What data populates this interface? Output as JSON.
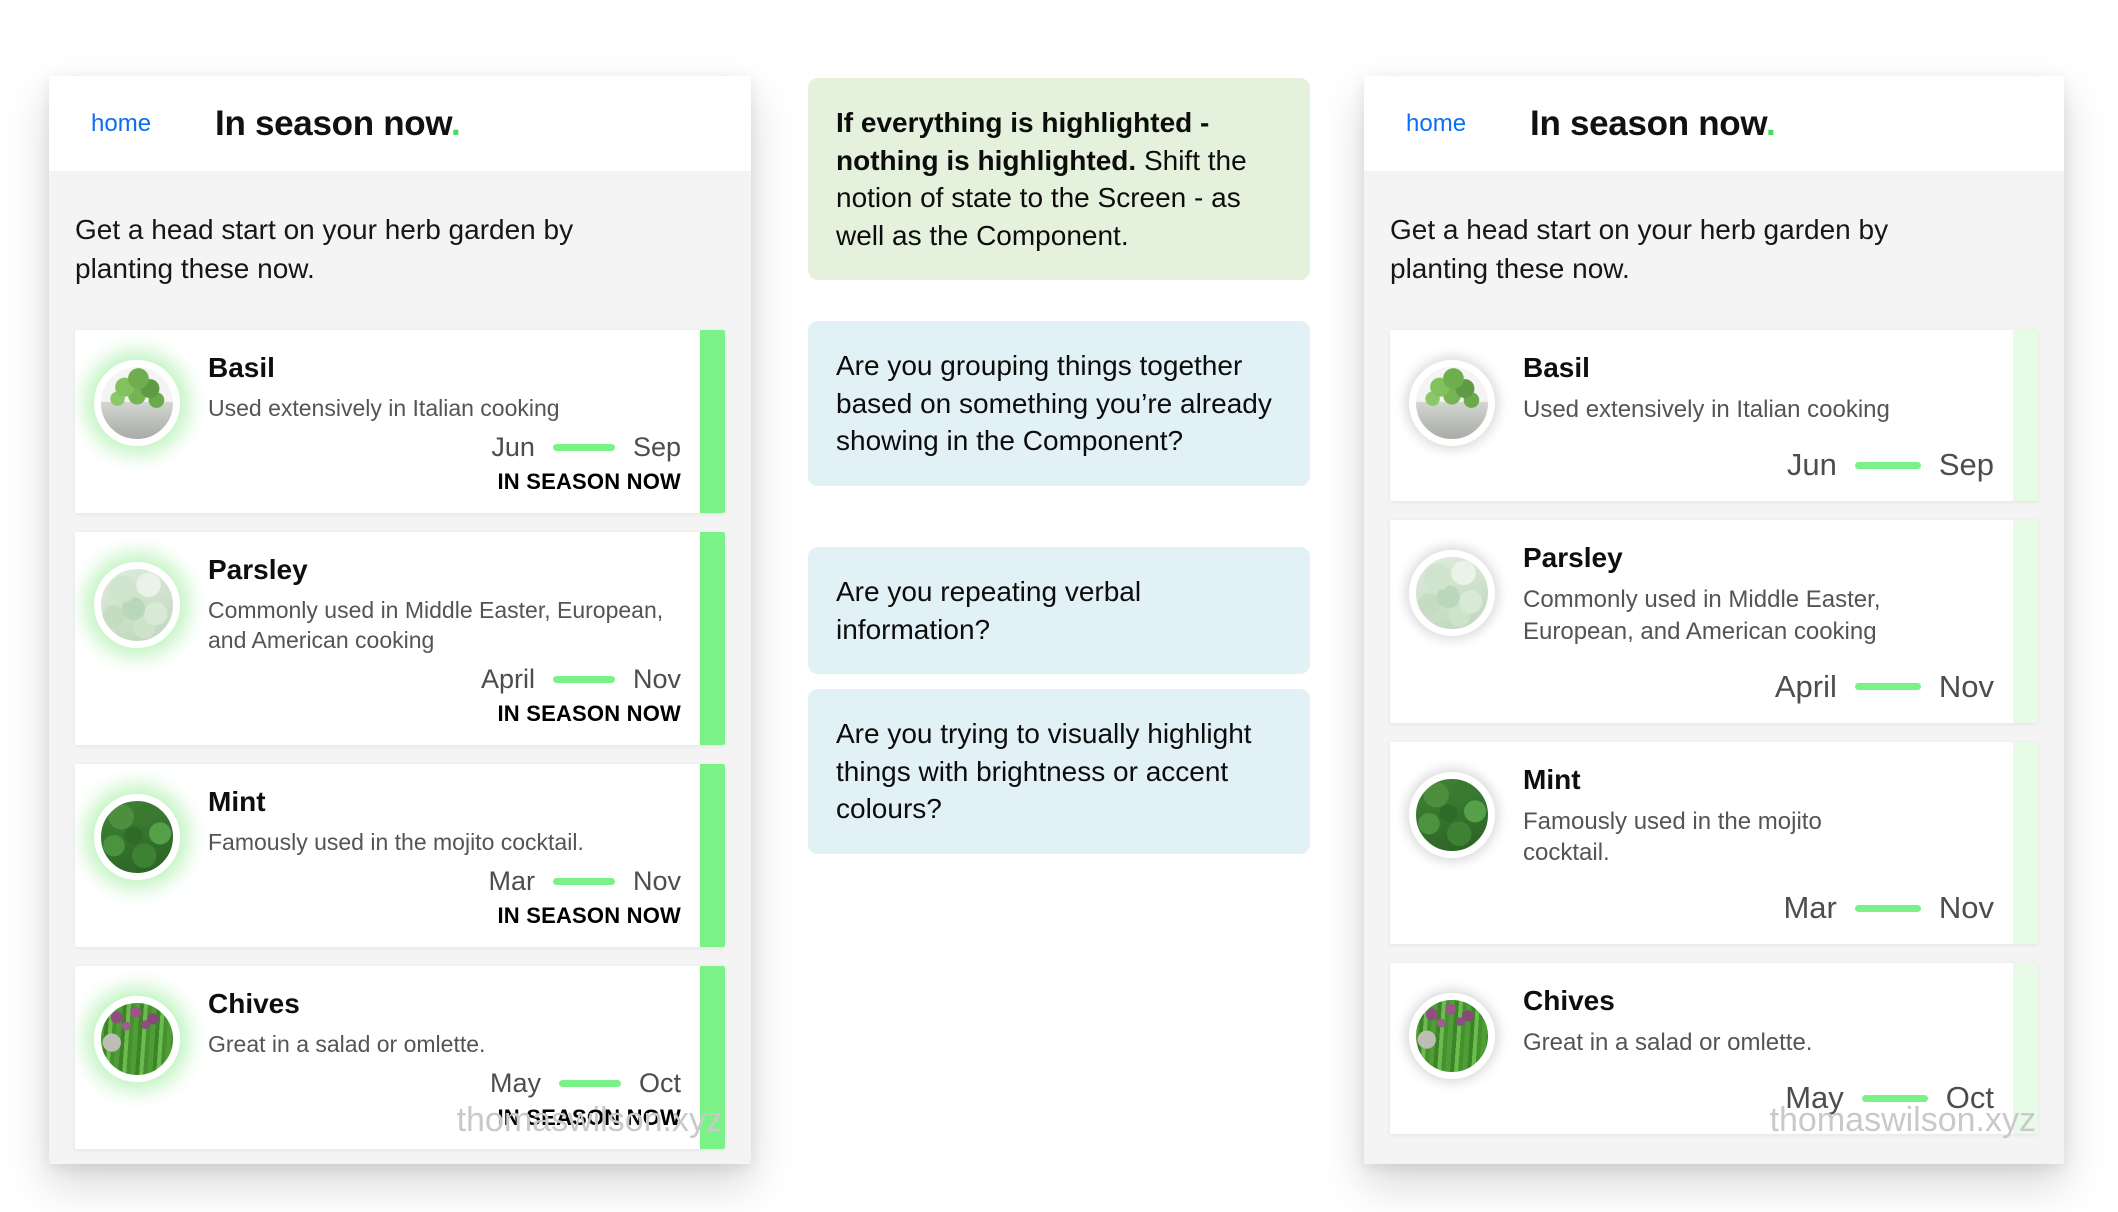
{
  "left_phone": {
    "nav": "home",
    "title": "In season now",
    "title_accent": ".",
    "intro": "Get a head start on your herb garden by planting these now.",
    "footer": "thomaswilson.xyz",
    "cards": [
      {
        "name": "Basil",
        "desc": "Used extensively in Italian cooking",
        "start": "Jun",
        "end": "Sep",
        "badge": "IN SEASON NOW",
        "photo": "basil"
      },
      {
        "name": "Parsley",
        "desc": "Commonly used in Middle Easter, European, and American cooking",
        "start": "April",
        "end": "Nov",
        "badge": "IN SEASON NOW",
        "photo": "parsley"
      },
      {
        "name": "Mint",
        "desc": "Famously used in the mojito cocktail.",
        "start": "Mar",
        "end": "Nov",
        "badge": "IN SEASON NOW",
        "photo": "mint"
      },
      {
        "name": "Chives",
        "desc": "Great in a salad or omlette.",
        "start": "May",
        "end": "Oct",
        "badge": "IN SEASON NOW",
        "photo": "chives"
      }
    ]
  },
  "right_phone": {
    "nav": "home",
    "title": "In season now",
    "title_accent": ".",
    "intro": "Get a head start on your herb garden by planting these now.",
    "footer": "thomaswilson.xyz",
    "cards": [
      {
        "name": "Basil",
        "desc": "Used extensively in Italian cooking",
        "start": "Jun",
        "end": "Sep",
        "photo": "basil"
      },
      {
        "name": "Parsley",
        "desc": "Commonly used in Middle Easter, European, and American cooking",
        "start": "April",
        "end": "Nov",
        "photo": "parsley"
      },
      {
        "name": "Mint",
        "desc": "Famously used in the mojito cocktail.",
        "start": "Mar",
        "end": "Nov",
        "photo": "mint"
      },
      {
        "name": "Chives",
        "desc": "Great in a salad or omlette.",
        "start": "May",
        "end": "Oct",
        "photo": "chives"
      }
    ]
  },
  "annotations": {
    "green_note_bold": "If everything is highlighted - nothing is highlighted.",
    "green_note_rest": " Shift the notion of state to the Screen - as well as the Component.",
    "questions": [
      "Are you grouping things together based on something you’re already showing in the Component?",
      "Are you repeating verbal information?",
      "Are you trying to visually highlight things with brightness or accent colours?"
    ]
  },
  "colors": {
    "accent_green": "#7bf287",
    "pale_green_bar": "#e8fbe7",
    "green_note_bg": "#e4f2dd",
    "question_bg": "#e1f1f5",
    "link_blue": "#0b6ef5",
    "title_dot_green": "#44de5e"
  }
}
